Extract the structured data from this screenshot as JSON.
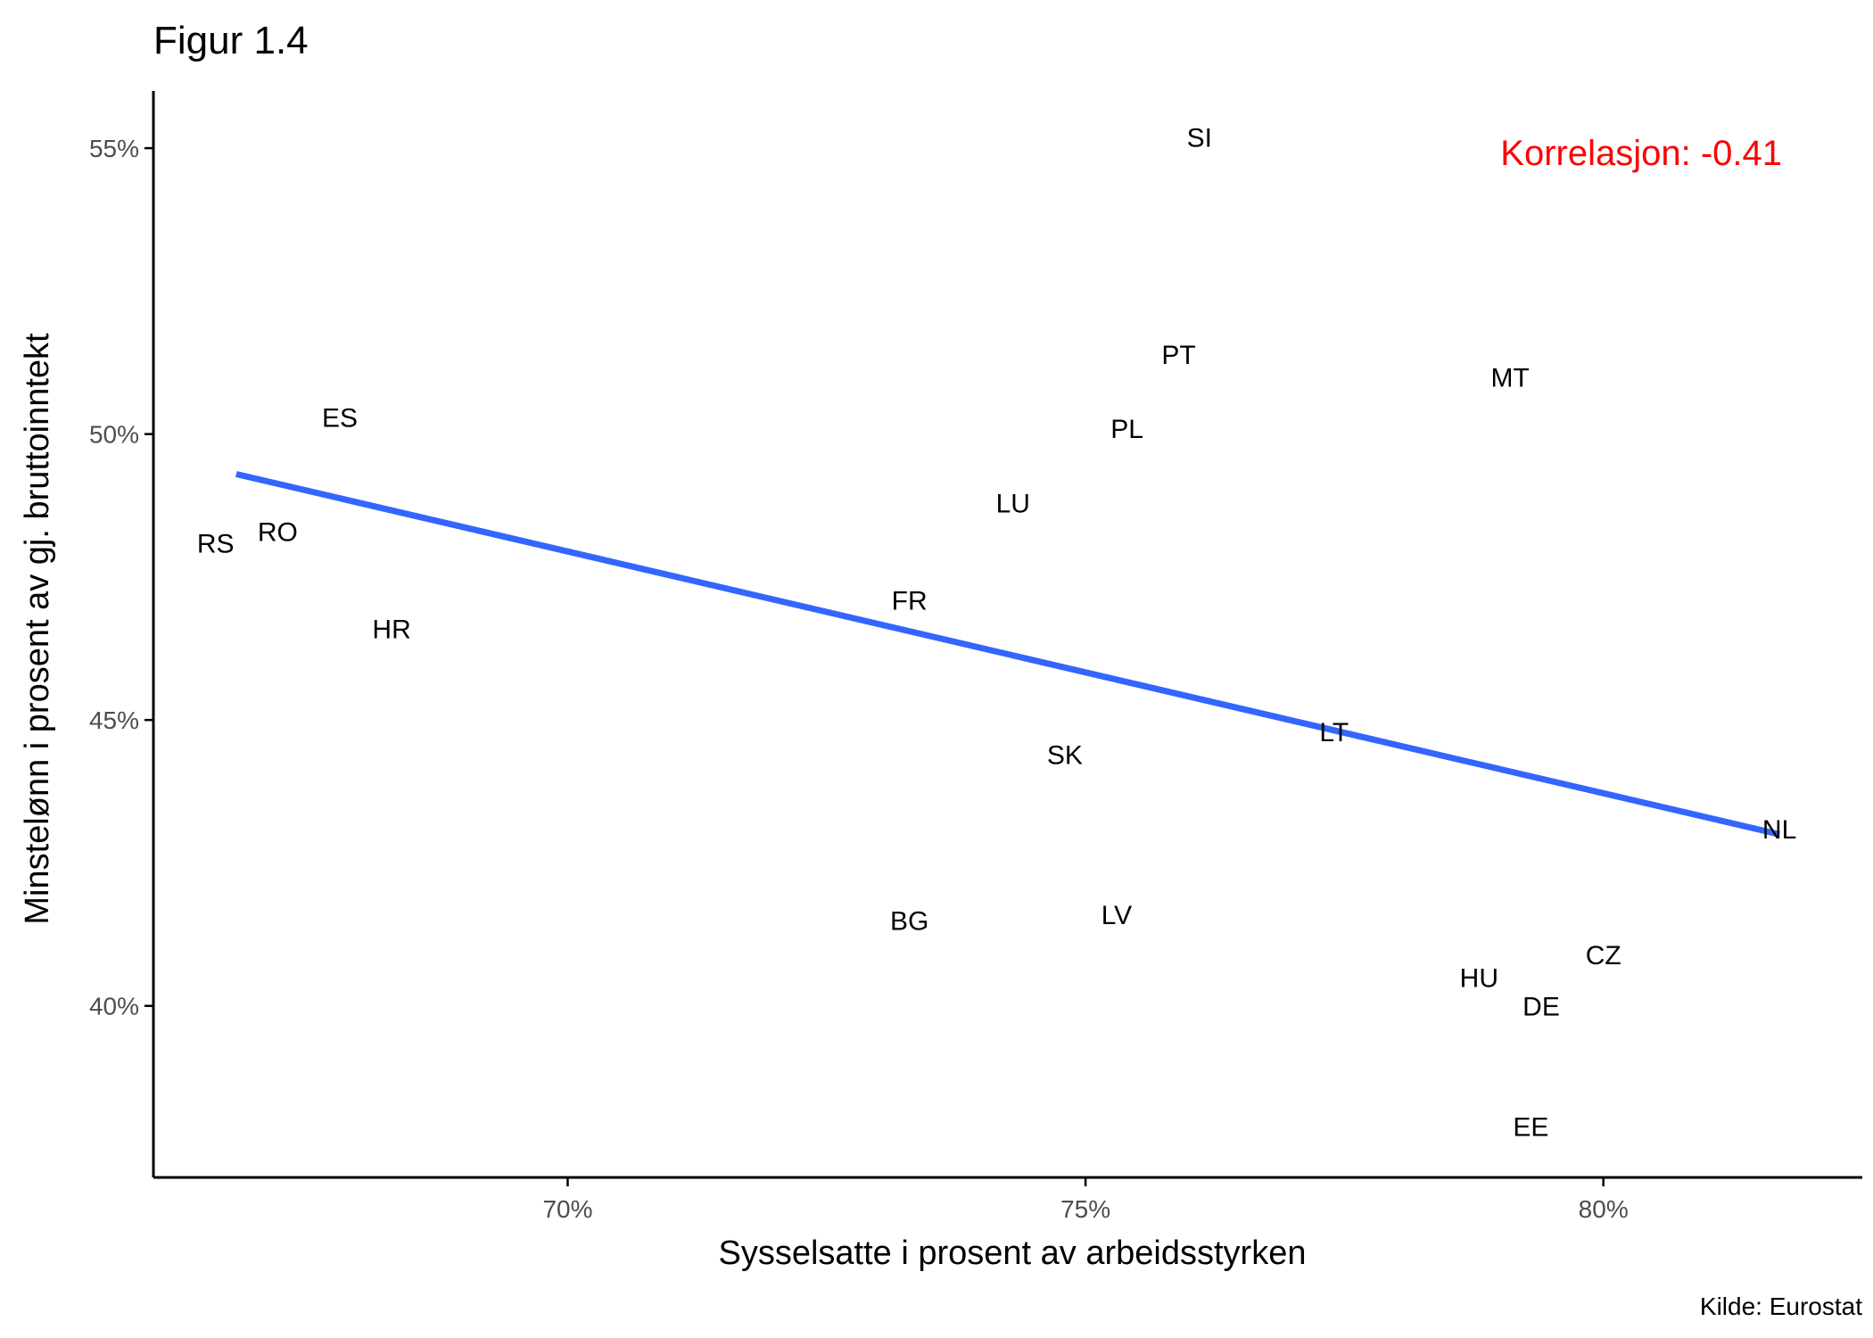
{
  "chart_data": {
    "type": "scatter",
    "title": "Figur 1.4",
    "xlabel": "Sysselsatte i prosent av arbeidsstyrken",
    "ylabel": "Minstelønn i prosent av gj. bruttoinntekt",
    "xlim": [
      66.0,
      82.5
    ],
    "ylim": [
      37.0,
      56.0
    ],
    "x_ticks": [
      70,
      75,
      80
    ],
    "x_tick_labels": [
      "70%",
      "75%",
      "80%"
    ],
    "y_ticks": [
      40,
      45,
      50,
      55
    ],
    "y_tick_labels": [
      "40%",
      "45%",
      "50%",
      "55%"
    ],
    "grid": false,
    "points": [
      {
        "label": "SI",
        "x": 76.1,
        "y": 55.2
      },
      {
        "label": "PT",
        "x": 75.9,
        "y": 51.4
      },
      {
        "label": "MT",
        "x": 79.1,
        "y": 51.0
      },
      {
        "label": "ES",
        "x": 67.8,
        "y": 50.3
      },
      {
        "label": "PL",
        "x": 75.4,
        "y": 50.1
      },
      {
        "label": "LU",
        "x": 74.3,
        "y": 48.8
      },
      {
        "label": "RO",
        "x": 67.2,
        "y": 48.3
      },
      {
        "label": "RS",
        "x": 66.6,
        "y": 48.1
      },
      {
        "label": "FR",
        "x": 73.3,
        "y": 47.1
      },
      {
        "label": "HR",
        "x": 68.3,
        "y": 46.6
      },
      {
        "label": "LT",
        "x": 77.4,
        "y": 44.8
      },
      {
        "label": "SK",
        "x": 74.8,
        "y": 44.4
      },
      {
        "label": "NL",
        "x": 81.7,
        "y": 43.1
      },
      {
        "label": "LV",
        "x": 75.3,
        "y": 41.6
      },
      {
        "label": "BG",
        "x": 73.3,
        "y": 41.5
      },
      {
        "label": "CZ",
        "x": 80.0,
        "y": 40.9
      },
      {
        "label": "HU",
        "x": 78.8,
        "y": 40.5
      },
      {
        "label": "DE",
        "x": 79.4,
        "y": 40.0
      },
      {
        "label": "EE",
        "x": 79.3,
        "y": 37.9
      }
    ],
    "fit_line": {
      "x": [
        66.8,
        81.7
      ],
      "y": [
        49.3,
        43.0
      ],
      "color": "#3366ff"
    },
    "annotation": {
      "text": "Korrelasjon: -0.41",
      "color": "#ff0000"
    },
    "caption": "Kilde: Eurostat"
  }
}
